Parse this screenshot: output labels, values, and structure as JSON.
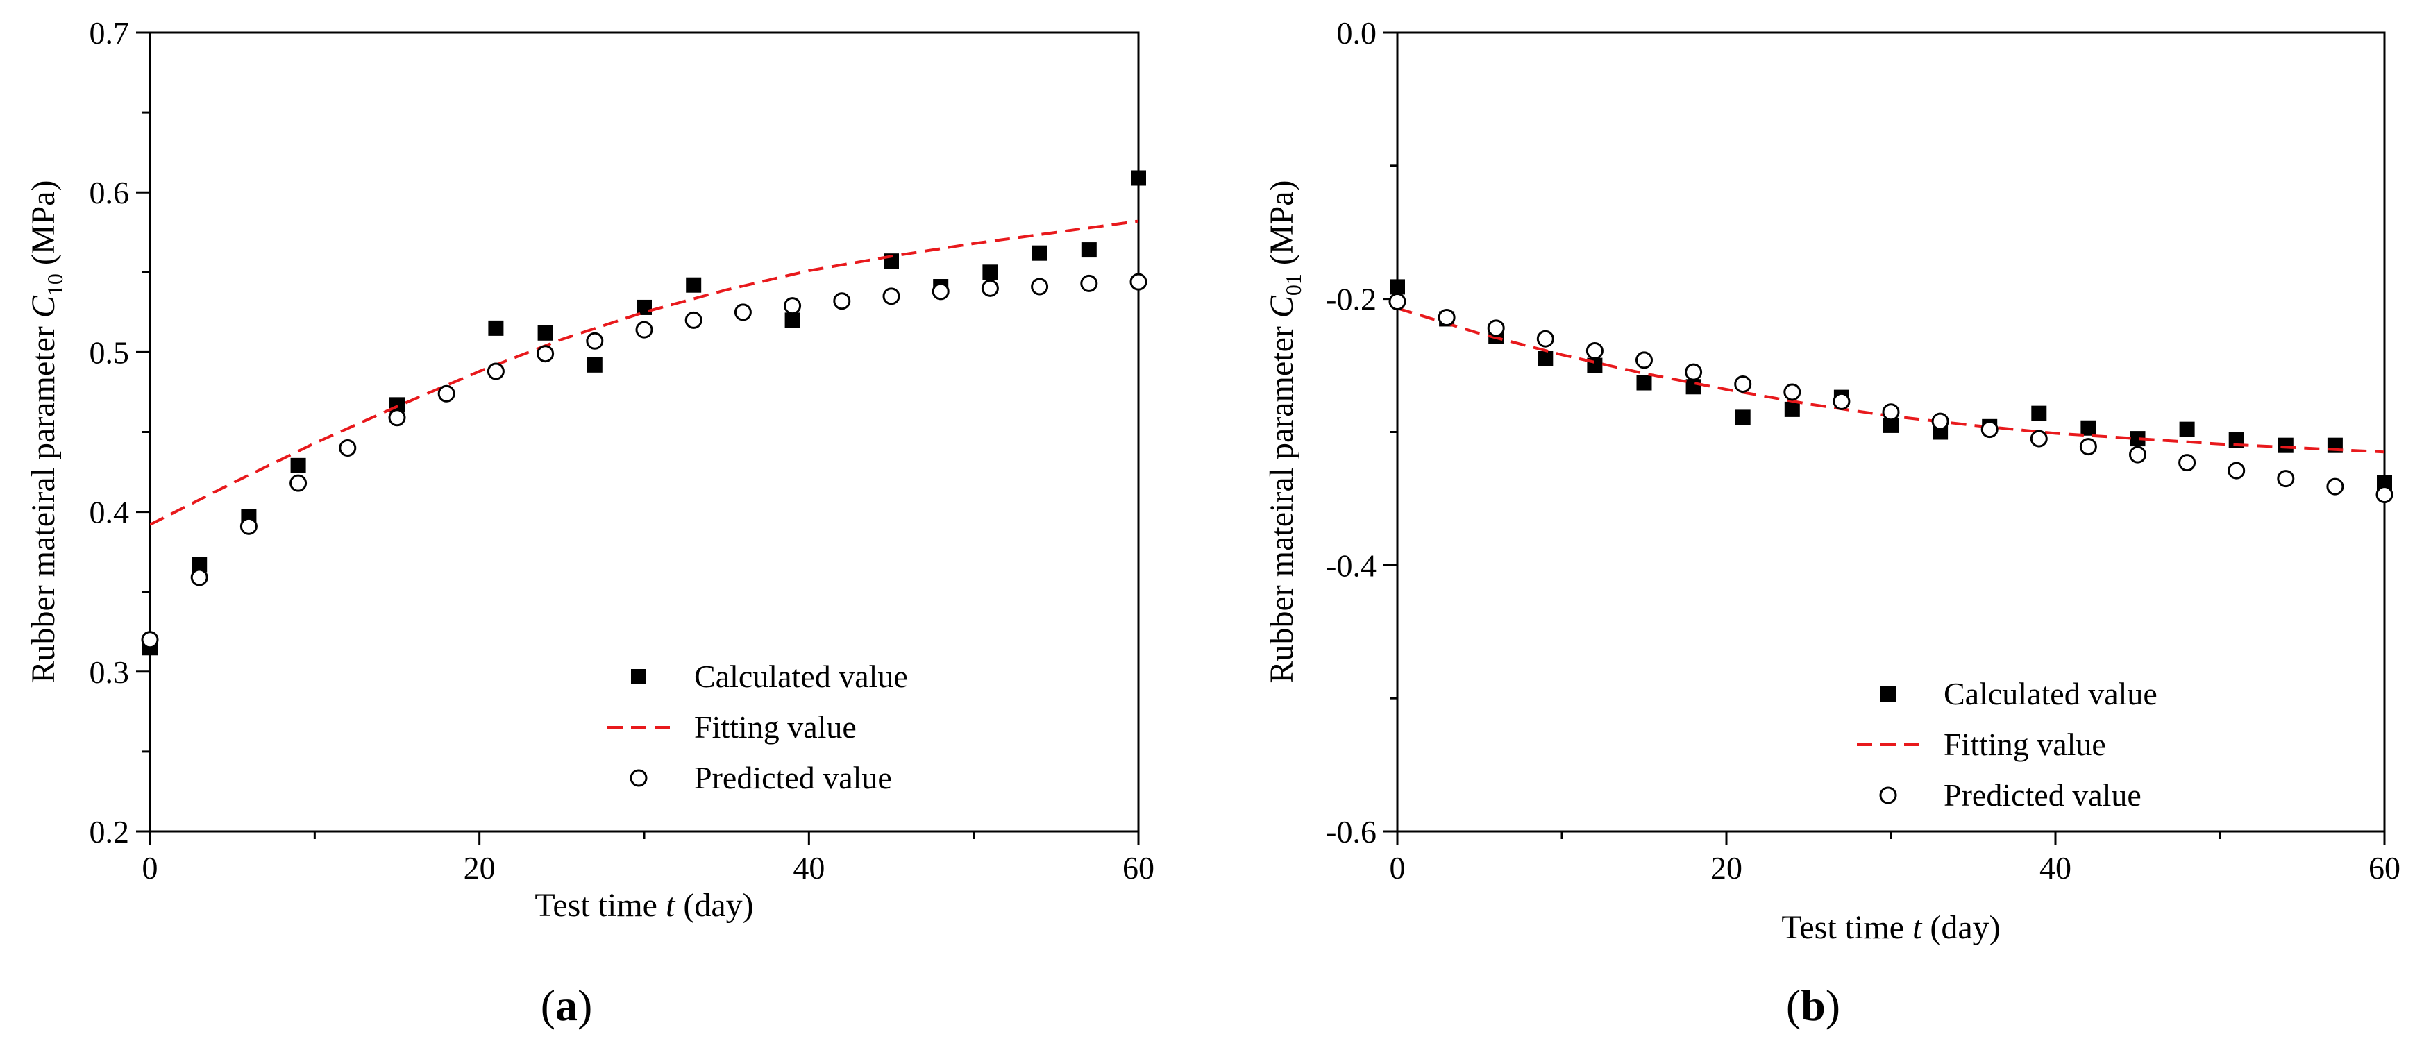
{
  "chart_data": [
    {
      "type": "scatter",
      "panel_label": "a",
      "xlabel": "Test time",
      "xlabel_var": "t",
      "xlabel_unit": "(day)",
      "ylabel": "Rubber mateiral parameter",
      "ylabel_var": "C",
      "ylabel_sub": "10",
      "ylabel_unit": "(MPa)",
      "xlim": [
        0,
        60
      ],
      "ylim": [
        0.2,
        0.7
      ],
      "xticks": [
        0,
        20,
        40,
        60
      ],
      "xtick_labels": [
        "0",
        "20",
        "40",
        "60"
      ],
      "yticks": [
        0.2,
        0.3,
        0.4,
        0.5,
        0.6,
        0.7
      ],
      "ytick_labels": [
        "0.2",
        "0.3",
        "0.4",
        "0.5",
        "0.6",
        "0.7"
      ],
      "legend_position": "bottom-right",
      "series": [
        {
          "name": "Calculated value",
          "marker": "filled-square",
          "color": "#000000",
          "x": [
            0,
            3,
            6,
            9,
            15,
            21,
            24,
            27,
            30,
            33,
            39,
            45,
            48,
            51,
            54,
            57,
            60
          ],
          "y": [
            0.315,
            0.367,
            0.397,
            0.429,
            0.467,
            0.515,
            0.512,
            0.492,
            0.528,
            0.542,
            0.52,
            0.557,
            0.541,
            0.55,
            0.562,
            0.564,
            0.609
          ]
        },
        {
          "name": "Fitting value",
          "style": "dashed-line",
          "color": "#e8191c",
          "x": [
            0,
            5,
            10,
            15,
            20,
            25,
            30,
            35,
            40,
            45,
            50,
            55,
            60
          ],
          "y": [
            0.392,
            0.418,
            0.443,
            0.466,
            0.488,
            0.508,
            0.525,
            0.539,
            0.551,
            0.56,
            0.568,
            0.575,
            0.582
          ]
        },
        {
          "name": "Predicted value",
          "marker": "open-circle",
          "color": "#000000",
          "x": [
            0,
            3,
            6,
            9,
            12,
            15,
            18,
            21,
            24,
            27,
            30,
            33,
            36,
            39,
            42,
            45,
            48,
            51,
            54,
            57,
            60
          ],
          "y": [
            0.32,
            0.359,
            0.391,
            0.418,
            0.44,
            0.459,
            0.474,
            0.488,
            0.499,
            0.507,
            0.514,
            0.52,
            0.525,
            0.529,
            0.532,
            0.535,
            0.538,
            0.54,
            0.541,
            0.543,
            0.544
          ]
        }
      ]
    },
    {
      "type": "scatter",
      "panel_label": "b",
      "xlabel": "Test time",
      "xlabel_var": "t",
      "xlabel_unit": "(day)",
      "ylabel": "Rubber mateiral parameter",
      "ylabel_var": "C",
      "ylabel_sub": "01",
      "ylabel_unit": "(MPa)",
      "xlim": [
        0,
        60
      ],
      "ylim": [
        -0.6,
        0.0
      ],
      "xticks": [
        0,
        20,
        40,
        60
      ],
      "xtick_labels": [
        "0",
        "20",
        "40",
        "60"
      ],
      "yticks": [
        -0.6,
        -0.4,
        -0.2,
        0.0
      ],
      "ytick_labels": [
        "-0.6",
        "-0.4",
        "-0.2",
        "0.0"
      ],
      "legend_position": "bottom-right",
      "series": [
        {
          "name": "Calculated value",
          "marker": "filled-square",
          "color": "#000000",
          "x": [
            0,
            3,
            6,
            9,
            12,
            15,
            18,
            21,
            24,
            27,
            30,
            33,
            36,
            39,
            42,
            45,
            48,
            51,
            54,
            57,
            60
          ],
          "y": [
            -0.191,
            -0.215,
            -0.228,
            -0.245,
            -0.25,
            -0.263,
            -0.266,
            -0.289,
            -0.283,
            -0.274,
            -0.295,
            -0.3,
            -0.296,
            -0.286,
            -0.297,
            -0.305,
            -0.298,
            -0.306,
            -0.31,
            -0.31,
            -0.338
          ]
        },
        {
          "name": "Fitting value",
          "style": "dashed-line",
          "color": "#e8191c",
          "x": [
            0,
            5,
            10,
            15,
            20,
            25,
            30,
            35,
            40,
            45,
            50,
            55,
            60
          ],
          "y": [
            -0.207,
            -0.226,
            -0.242,
            -0.256,
            -0.268,
            -0.279,
            -0.288,
            -0.295,
            -0.301,
            -0.305,
            -0.309,
            -0.312,
            -0.315
          ]
        },
        {
          "name": "Predicted value",
          "marker": "open-circle",
          "color": "#000000",
          "x": [
            0,
            3,
            6,
            9,
            12,
            15,
            18,
            21,
            24,
            27,
            30,
            33,
            36,
            39,
            42,
            45,
            48,
            51,
            54,
            57,
            60
          ],
          "y": [
            -0.202,
            -0.214,
            -0.222,
            -0.23,
            -0.239,
            -0.246,
            -0.255,
            -0.264,
            -0.27,
            -0.277,
            -0.285,
            -0.292,
            -0.298,
            -0.305,
            -0.311,
            -0.317,
            -0.323,
            -0.329,
            -0.335,
            -0.341,
            -0.347
          ]
        }
      ]
    }
  ]
}
